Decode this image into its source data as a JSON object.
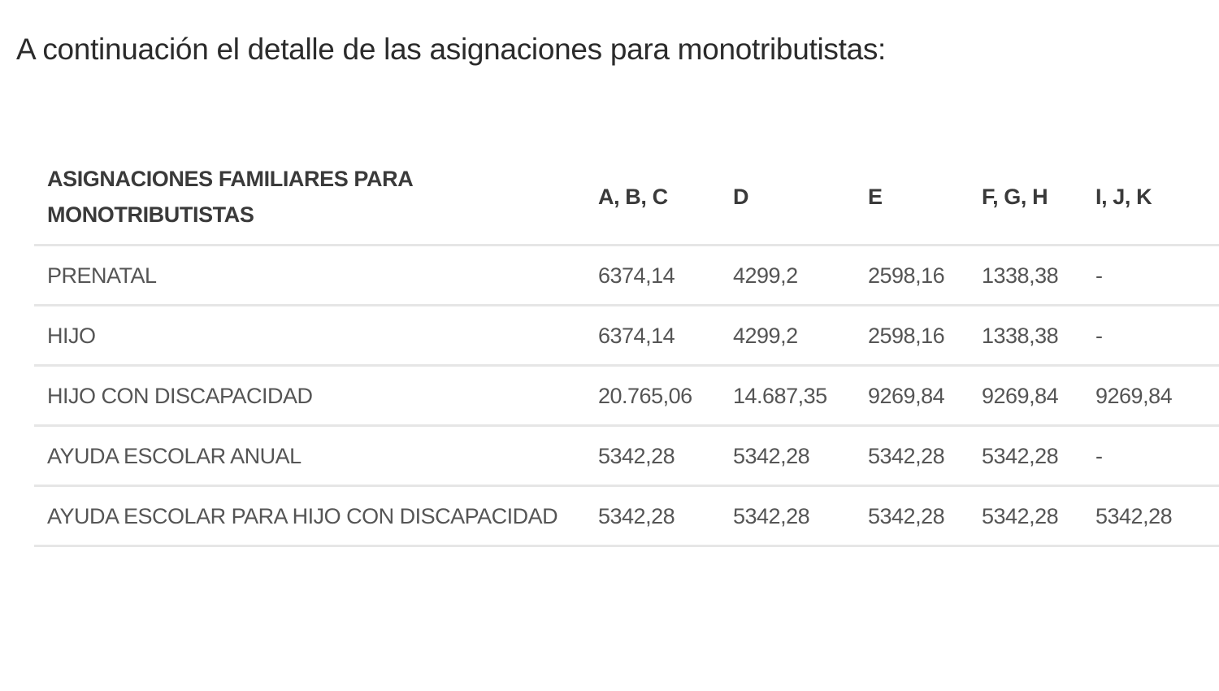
{
  "intro_text": "A continuación el detalle de las asignaciones para monotributistas:",
  "table": {
    "headers": [
      "ASIGNACIONES FAMILIARES PARA MONOTRIBUTISTAS",
      "A, B, C",
      "D",
      "E",
      "F, G, H",
      "I, J, K"
    ],
    "rows": [
      {
        "label": "PRENATAL",
        "values": [
          "6374,14",
          "4299,2",
          "2598,16",
          "1338,38",
          "-"
        ]
      },
      {
        "label": "HIJO",
        "values": [
          "6374,14",
          "4299,2",
          "2598,16",
          "1338,38",
          "-"
        ]
      },
      {
        "label": "HIJO CON DISCAPACIDAD",
        "values": [
          "20.765,06",
          "14.687,35",
          "9269,84",
          "9269,84",
          "9269,84"
        ]
      },
      {
        "label": "AYUDA ESCOLAR ANUAL",
        "values": [
          "5342,28",
          "5342,28",
          "5342,28",
          "5342,28",
          "-"
        ]
      },
      {
        "label": "AYUDA ESCOLAR PARA HIJO CON DISCAPACIDAD",
        "values": [
          "5342,28",
          "5342,28",
          "5342,28",
          "5342,28",
          "5342,28"
        ]
      }
    ]
  }
}
